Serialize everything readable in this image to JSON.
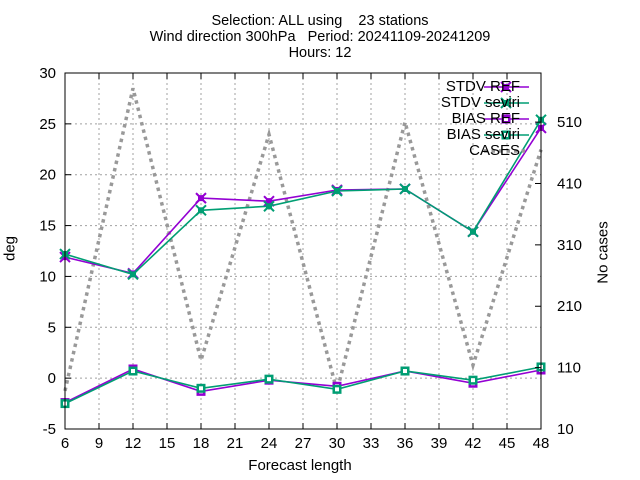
{
  "chart_data": {
    "type": "line",
    "title_lines": [
      "Selection: ALL using    23 stations",
      "Wind direction 300hPa   Period: 20241109-20241209",
      "Hours: 12"
    ],
    "xlabel": "Forecast length",
    "ylabel": "deg",
    "y2label": "No cases",
    "x": [
      6,
      12,
      18,
      24,
      30,
      36,
      42,
      48
    ],
    "xlim": [
      6,
      48
    ],
    "xticks": [
      6,
      9,
      12,
      15,
      18,
      21,
      24,
      27,
      30,
      33,
      36,
      39,
      42,
      45,
      48
    ],
    "ylim": [
      -5,
      30
    ],
    "yticks": [
      -5,
      0,
      5,
      10,
      15,
      20,
      25,
      30
    ],
    "y2lim": [
      10,
      590
    ],
    "y2ticks": [
      10,
      110,
      210,
      310,
      410,
      510
    ],
    "grid": true,
    "legend_position": "top-right",
    "series": [
      {
        "name": "STDV REF",
        "axis": "y1",
        "color": "#9400d3",
        "style": "solid",
        "marker": "x-filled-square",
        "values": [
          11.9,
          10.3,
          17.7,
          17.4,
          18.5,
          18.6,
          14.4,
          24.6
        ]
      },
      {
        "name": "STDV seviri",
        "axis": "y1",
        "color": "#009e73",
        "style": "solid",
        "marker": "x-filled-square",
        "values": [
          12.2,
          10.2,
          16.5,
          16.9,
          18.4,
          18.6,
          14.4,
          25.4
        ]
      },
      {
        "name": "BIAS REF",
        "axis": "y1",
        "color": "#9400d3",
        "style": "solid",
        "marker": "open-square",
        "values": [
          -2.4,
          0.9,
          -1.3,
          -0.2,
          -0.8,
          0.7,
          -0.5,
          0.8
        ]
      },
      {
        "name": "BIAS seviri",
        "axis": "y1",
        "color": "#009e73",
        "style": "solid",
        "marker": "open-square",
        "values": [
          -2.5,
          0.7,
          -1.0,
          -0.1,
          -1.1,
          0.7,
          -0.2,
          1.1
        ]
      },
      {
        "name": "CASES",
        "axis": "y2",
        "color": "#999999",
        "style": "dotted",
        "marker": "none",
        "values": [
          72,
          565,
          122,
          490,
          72,
          510,
          114,
          465
        ]
      }
    ]
  }
}
